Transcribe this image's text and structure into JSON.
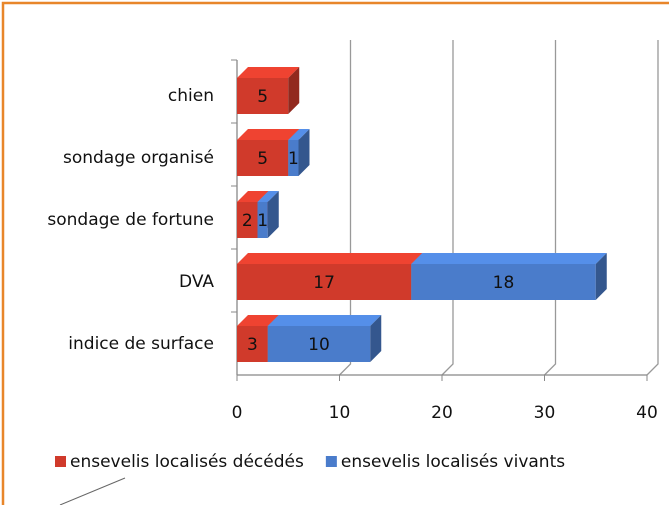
{
  "chart_data": {
    "type": "bar",
    "orientation": "horizontal",
    "stacked": true,
    "categories": [
      "chien",
      "sondage organisé",
      "sondage de fortune",
      "DVA",
      "indice de surface"
    ],
    "series": [
      {
        "name": "ensevelis localisés décédés",
        "color": "#d03a2b",
        "values": [
          5,
          5,
          2,
          17,
          3
        ]
      },
      {
        "name": "ensevelis localisés vivants",
        "color": "#4a7ccb",
        "values": [
          null,
          1,
          1,
          18,
          10
        ]
      }
    ],
    "xlim": [
      0,
      40
    ],
    "xticks": [
      0,
      10,
      20,
      30,
      40
    ],
    "grid": true,
    "legend": "bottom"
  }
}
